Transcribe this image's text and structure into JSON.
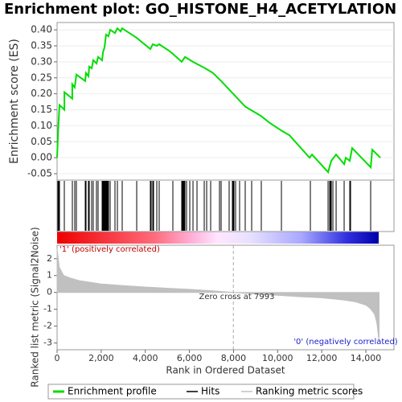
{
  "chart_data": [
    {
      "type": "line",
      "title": "Enrichment plot: GO_HISTONE_H4_ACETYLATION",
      "ylabel": "Enrichment score (ES)",
      "x": [
        0,
        50,
        110,
        330,
        330,
        690,
        690,
        800,
        875,
        1275,
        1310,
        1420,
        1460,
        1570,
        1640,
        1790,
        1860,
        2040,
        2080,
        2150,
        2220,
        2330,
        2410,
        2625,
        2735,
        2880,
        2950,
        3610,
        4230,
        4340,
        4520,
        4630,
        5070,
        5250,
        5650,
        5800,
        6160,
        6710,
        7070,
        7440,
        8530,
        9260,
        9620,
        10170,
        10540,
        11450,
        11560,
        12290,
        12430,
        12650,
        13020,
        13090,
        13270,
        13380,
        14220,
        14290,
        14660
      ],
      "series": [
        {
          "name": "Enrichment profile",
          "color": "#00dd00",
          "values": [
            0,
            0.09,
            0.165,
            0.15,
            0.205,
            0.185,
            0.23,
            0.22,
            0.26,
            0.24,
            0.265,
            0.255,
            0.285,
            0.28,
            0.305,
            0.295,
            0.315,
            0.305,
            0.33,
            0.345,
            0.385,
            0.38,
            0.4,
            0.39,
            0.405,
            0.395,
            0.405,
            0.375,
            0.34,
            0.355,
            0.35,
            0.355,
            0.335,
            0.325,
            0.3,
            0.315,
            0.3,
            0.28,
            0.265,
            0.24,
            0.16,
            0.13,
            0.11,
            0.085,
            0.07,
            0.0,
            0.01,
            -0.045,
            -0.01,
            0.01,
            -0.02,
            0.0,
            -0.01,
            0.03,
            -0.03,
            0.025,
            0.0
          ]
        }
      ],
      "xlim": [
        0,
        15275
      ],
      "ylim": [
        -0.07,
        0.423
      ],
      "yticks": [
        {
          "value": -0.05,
          "label": "-0.05"
        },
        {
          "value": 0,
          "label": "0.00"
        },
        {
          "value": 0.05,
          "label": "0.05"
        },
        {
          "value": 0.1,
          "label": "0.10"
        },
        {
          "value": 0.15,
          "label": "0.15"
        },
        {
          "value": 0.2,
          "label": "0.20"
        },
        {
          "value": 0.25,
          "label": "0.25"
        },
        {
          "value": 0.3,
          "label": "0.30"
        },
        {
          "value": 0.35,
          "label": "0.35"
        },
        {
          "value": 0.4,
          "label": "0.40"
        }
      ],
      "grid": true
    },
    {
      "type": "rug",
      "series": [
        {
          "name": "Hits",
          "color": "#000000",
          "x": [
            36,
            73,
            109,
            328,
            693,
            802,
            875,
            1276,
            1313,
            1422,
            1458,
            1568,
            1640,
            1786,
            1859,
            2042,
            2078,
            2115,
            2151,
            2188,
            2224,
            2260,
            2297,
            2333,
            2406,
            2625,
            2735,
            2953,
            3610,
            4229,
            4266,
            4339,
            4375,
            4521,
            4630,
            5250,
            5651,
            5688,
            5724,
            5761,
            5797,
            5870,
            6016,
            6162,
            6344,
            6672,
            6782,
            6964,
            7365,
            7438,
            7802,
            7948,
            7985,
            8021,
            8094,
            8276,
            8531,
            8823,
            9260,
            10172,
            11485,
            12287,
            12360,
            12396,
            12433,
            12506,
            12652,
            13016,
            13271,
            13308,
            14219
          ]
        }
      ],
      "xlim": [
        0,
        15275
      ]
    },
    {
      "type": "area",
      "ylabel": "Ranked list metric (Signal2Noise)",
      "xlabel": "Rank in Ordered Dataset",
      "x": [
        0,
        100,
        300,
        600,
        1000,
        2000,
        3000,
        4000,
        5000,
        6000,
        7000,
        7993,
        9000,
        10000,
        11000,
        12000,
        13000,
        13500,
        14000,
        14200,
        14400,
        14500,
        14600
      ],
      "series": [
        {
          "name": "Ranking metric scores",
          "color": "#c0c0c0",
          "values": [
            2.6,
            1.5,
            1.0,
            0.85,
            0.7,
            0.5,
            0.4,
            0.32,
            0.25,
            0.18,
            0.1,
            0,
            -0.1,
            -0.17,
            -0.25,
            -0.32,
            -0.45,
            -0.55,
            -0.75,
            -0.95,
            -1.3,
            -1.8,
            -2.9
          ]
        }
      ],
      "xlim": [
        0,
        15275
      ],
      "ylim": [
        -3.4,
        2.8
      ],
      "xticks": [
        0,
        {
          "value": 2000,
          "label": "2,000"
        },
        {
          "value": 4000,
          "label": "4,000"
        },
        {
          "value": 6000,
          "label": "6,000"
        },
        {
          "value": 8000,
          "label": "8,000"
        },
        {
          "value": 10000,
          "label": "10,000"
        },
        {
          "value": 12000,
          "label": "12,000"
        },
        {
          "value": 14000,
          "label": "14,000"
        }
      ],
      "yticks": [
        2,
        1,
        0,
        -1,
        -2,
        -3
      ],
      "zero_cross": 7993,
      "annotations": [
        "'1' (positively correlated)",
        "Zero cross at 7993",
        "'0' (negatively correlated)"
      ]
    }
  ]
}
